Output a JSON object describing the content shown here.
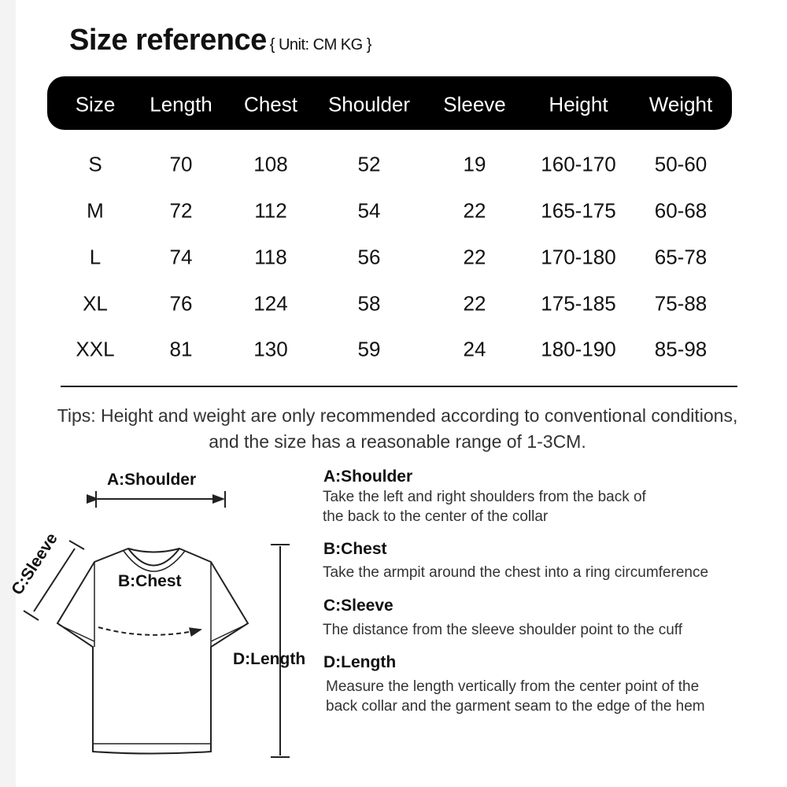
{
  "title": "Size reference",
  "unit": "{ Unit: CM KG }",
  "table": {
    "headers": [
      "Size",
      "Length",
      "Chest",
      "Shoulder",
      "Sleeve",
      "Height",
      "Weight"
    ],
    "rows": [
      [
        "S",
        "70",
        "108",
        "52",
        "19",
        "160-170",
        "50-60"
      ],
      [
        "M",
        "72",
        "112",
        "54",
        "22",
        "165-175",
        "60-68"
      ],
      [
        "L",
        "74",
        "118",
        "56",
        "22",
        "170-180",
        "65-78"
      ],
      [
        "XL",
        "76",
        "124",
        "58",
        "22",
        "175-185",
        "75-88"
      ],
      [
        "XXL",
        "81",
        "130",
        "59",
        "24",
        "180-190",
        "85-98"
      ]
    ]
  },
  "tips": "Tips: Height and weight are only recommended according to conventional conditions, and the size has a reasonable range of 1-3CM.",
  "diagram": {
    "shoulder": "A:Shoulder",
    "chest": "B:Chest",
    "sleeve": "C:Sleeve",
    "length": "D:Length"
  },
  "legend": [
    {
      "title": "A:Shoulder",
      "text": [
        "Take the left and right shoulders from the back of",
        "the back to the center of the collar"
      ]
    },
    {
      "title": "B:Chest",
      "text": [
        "Take the armpit around the chest into a ring circumference"
      ]
    },
    {
      "title": "C:Sleeve",
      "text": [
        "The distance from the sleeve shoulder point to the cuff"
      ]
    },
    {
      "title": "D:Length",
      "text": [
        "Measure the length vertically from the center point of the",
        "back collar and the garment seam to the edge of the hem"
      ]
    }
  ]
}
